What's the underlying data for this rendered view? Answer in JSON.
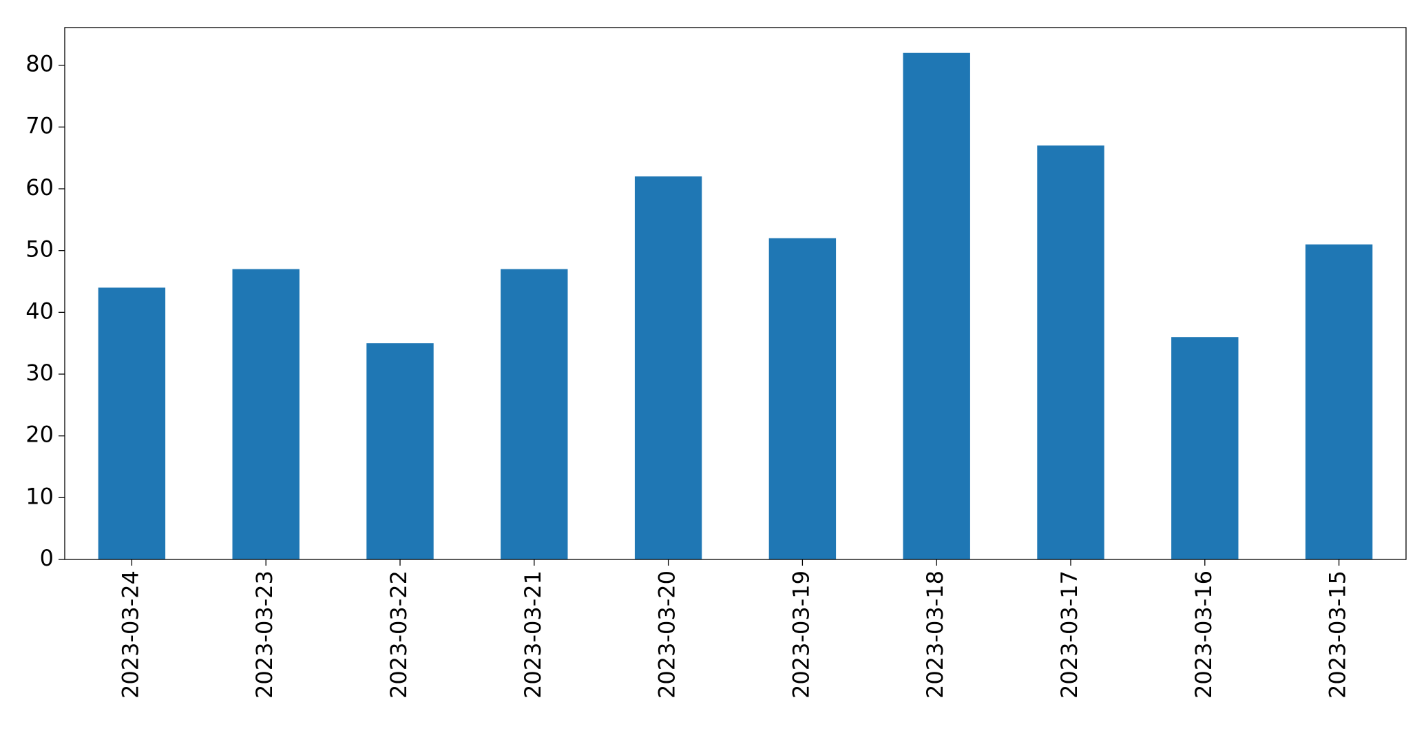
{
  "chart_data": {
    "type": "bar",
    "categories": [
      "2023-03-24",
      "2023-03-23",
      "2023-03-22",
      "2023-03-21",
      "2023-03-20",
      "2023-03-19",
      "2023-03-18",
      "2023-03-17",
      "2023-03-16",
      "2023-03-15"
    ],
    "values": [
      44,
      47,
      35,
      47,
      62,
      52,
      82,
      67,
      36,
      51
    ],
    "color": "#1f77b4",
    "ylim": [
      0,
      86.1
    ],
    "yticks": [
      0,
      10,
      20,
      30,
      40,
      50,
      60,
      70,
      80
    ],
    "grid": false
  }
}
